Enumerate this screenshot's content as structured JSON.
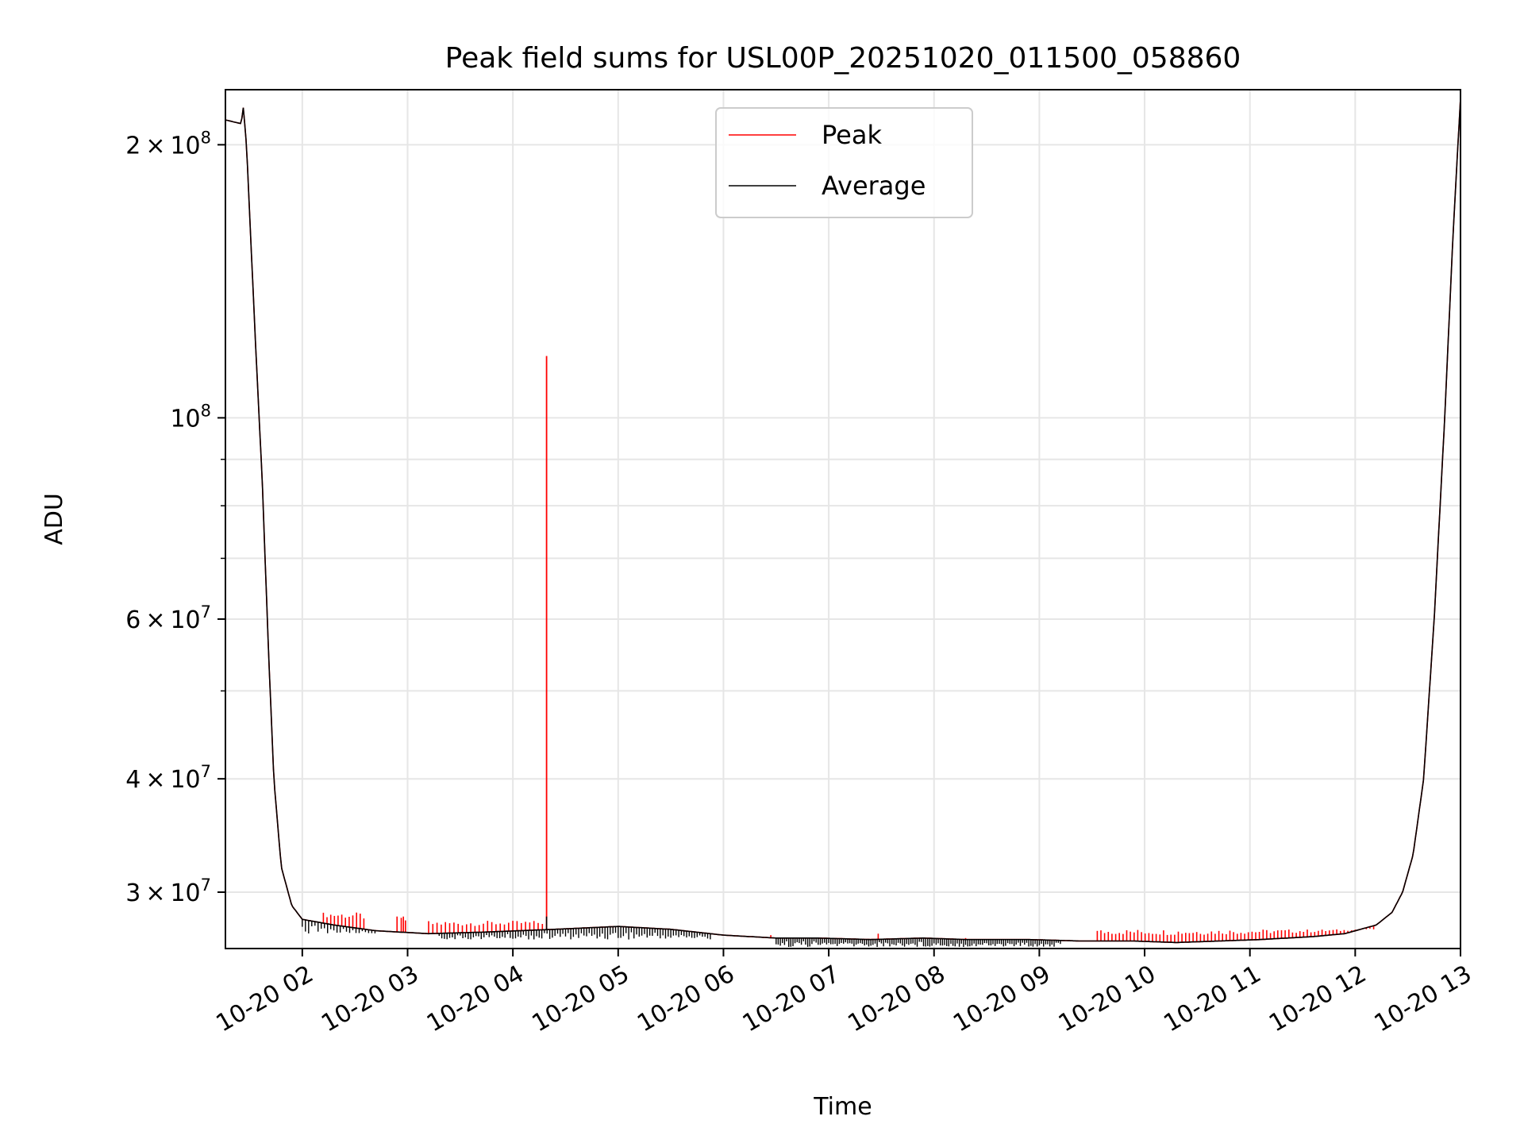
{
  "chart_data": {
    "type": "line",
    "title": "Peak field sums for USL00P_20251020_011500_058860",
    "xlabel": "Time",
    "ylabel": "ADU",
    "yscale": "log",
    "ylim": [
      26000000,
      230000000
    ],
    "xlim_hours": [
      1.27,
      13.0
    ],
    "grid": true,
    "legend_position": "upper-center",
    "x_ticks": [
      {
        "h": 2,
        "label": "10-20 02"
      },
      {
        "h": 3,
        "label": "10-20 03"
      },
      {
        "h": 4,
        "label": "10-20 04"
      },
      {
        "h": 5,
        "label": "10-20 05"
      },
      {
        "h": 6,
        "label": "10-20 06"
      },
      {
        "h": 7,
        "label": "10-20 07"
      },
      {
        "h": 8,
        "label": "10-20 08"
      },
      {
        "h": 9,
        "label": "10-20 09"
      },
      {
        "h": 10,
        "label": "10-20 10"
      },
      {
        "h": 11,
        "label": "10-20 11"
      },
      {
        "h": 12,
        "label": "10-20 12"
      },
      {
        "h": 13,
        "label": "10-20 13"
      }
    ],
    "y_ticks": [
      {
        "v": 30000000,
        "mant": "3",
        "exp": "7"
      },
      {
        "v": 40000000,
        "mant": "4",
        "exp": "7"
      },
      {
        "v": 60000000,
        "mant": "6",
        "exp": "7"
      },
      {
        "v": 100000000,
        "mant": "",
        "exp": "8"
      },
      {
        "v": 200000000,
        "mant": "2",
        "exp": "8"
      }
    ],
    "y_minor_ticks": [
      50000000,
      70000000,
      80000000,
      90000000
    ],
    "series": [
      {
        "name": "Peak",
        "color": "#ff0000",
        "baseline": [
          [
            1.27,
            213000000
          ],
          [
            1.42,
            211000000
          ],
          [
            1.44,
            220000000
          ],
          [
            1.47,
            200000000
          ],
          [
            1.56,
            118000000
          ],
          [
            1.62,
            85000000
          ],
          [
            1.68,
            55000000
          ],
          [
            1.73,
            40000000
          ],
          [
            1.8,
            32000000
          ],
          [
            1.9,
            29000000
          ],
          [
            2.0,
            28000000
          ],
          [
            2.3,
            27600000
          ],
          [
            2.7,
            27200000
          ],
          [
            3.2,
            27000000
          ],
          [
            3.7,
            27100000
          ],
          [
            4.4,
            27300000
          ],
          [
            5.0,
            27500000
          ],
          [
            5.5,
            27300000
          ],
          [
            6.0,
            26900000
          ],
          [
            6.5,
            26700000
          ],
          [
            6.9,
            26700000
          ],
          [
            7.4,
            26600000
          ],
          [
            7.9,
            26700000
          ],
          [
            8.3,
            26600000
          ],
          [
            8.9,
            26600000
          ],
          [
            9.4,
            26500000
          ],
          [
            9.9,
            26500000
          ],
          [
            10.3,
            26400000
          ],
          [
            10.7,
            26500000
          ],
          [
            11.1,
            26600000
          ],
          [
            11.6,
            26800000
          ],
          [
            11.9,
            27000000
          ],
          [
            12.2,
            27600000
          ],
          [
            12.35,
            28500000
          ],
          [
            12.45,
            30000000
          ],
          [
            12.55,
            33000000
          ],
          [
            12.65,
            40000000
          ],
          [
            12.75,
            60000000
          ],
          [
            12.85,
            100000000
          ],
          [
            12.93,
            160000000
          ],
          [
            13.0,
            225000000
          ]
        ],
        "spikes": [
          {
            "from": 2.2,
            "to": 2.6,
            "top": 28500000,
            "step": 0.035
          },
          {
            "from": 2.9,
            "to": 3.0,
            "top": 28200000,
            "step": 0.04
          },
          {
            "from": 3.2,
            "to": 4.3,
            "top": 27900000,
            "step": 0.04
          },
          {
            "from": 9.55,
            "to": 12.2,
            "top": 27300000,
            "step": 0.035
          }
        ],
        "big_spike": {
          "h": 4.32,
          "v": 117000000
        },
        "isolated_spikes": [
          [
            2.96,
            28200000
          ],
          [
            5.52,
            27300000
          ],
          [
            5.72,
            27100000
          ],
          [
            6.45,
            26900000
          ],
          [
            7.47,
            27000000
          ],
          [
            8.3,
            26700000
          ]
        ]
      },
      {
        "name": "Average",
        "color": "#000000",
        "baseline": [
          [
            1.27,
            213000000
          ],
          [
            1.42,
            211000000
          ],
          [
            1.44,
            220000000
          ],
          [
            1.47,
            200000000
          ],
          [
            1.56,
            118000000
          ],
          [
            1.62,
            85000000
          ],
          [
            1.68,
            55000000
          ],
          [
            1.73,
            40000000
          ],
          [
            1.8,
            32000000
          ],
          [
            1.9,
            29000000
          ],
          [
            2.0,
            28000000
          ],
          [
            2.3,
            27600000
          ],
          [
            2.7,
            27200000
          ],
          [
            3.2,
            27000000
          ],
          [
            3.7,
            27100000
          ],
          [
            4.4,
            27300000
          ],
          [
            5.0,
            27500000
          ],
          [
            5.5,
            27300000
          ],
          [
            6.0,
            26900000
          ],
          [
            6.5,
            26700000
          ],
          [
            6.9,
            26700000
          ],
          [
            7.4,
            26600000
          ],
          [
            7.9,
            26700000
          ],
          [
            8.3,
            26600000
          ],
          [
            8.9,
            26600000
          ],
          [
            9.4,
            26500000
          ],
          [
            9.9,
            26500000
          ],
          [
            10.3,
            26400000
          ],
          [
            10.7,
            26500000
          ],
          [
            11.1,
            26600000
          ],
          [
            11.6,
            26800000
          ],
          [
            11.9,
            27000000
          ],
          [
            12.2,
            27600000
          ],
          [
            12.35,
            28500000
          ],
          [
            12.45,
            30000000
          ],
          [
            12.55,
            33000000
          ],
          [
            12.65,
            40000000
          ],
          [
            12.75,
            60000000
          ],
          [
            12.85,
            100000000
          ],
          [
            12.93,
            160000000
          ],
          [
            13.0,
            225000000
          ]
        ],
        "dips": [
          {
            "from": 2.0,
            "to": 2.7,
            "bottom": 27000000,
            "step": 0.03
          },
          {
            "from": 3.3,
            "to": 5.9,
            "bottom": 26600000,
            "step": 0.025
          },
          {
            "from": 6.5,
            "to": 9.2,
            "bottom": 26100000,
            "step": 0.02
          }
        ],
        "small_spike": {
          "h": 4.32,
          "v": 28200000
        }
      }
    ]
  }
}
